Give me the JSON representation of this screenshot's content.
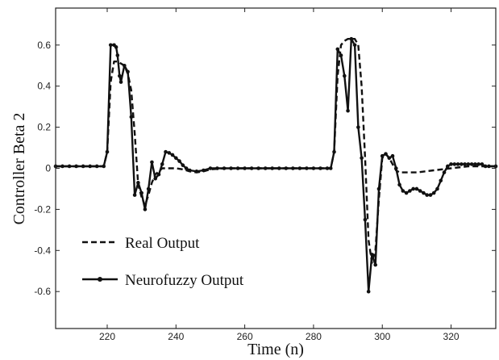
{
  "chart_data": {
    "type": "line",
    "title": "",
    "xlabel": "Time (n)",
    "ylabel": "Controller Beta 2",
    "xlim": [
      205,
      333
    ],
    "ylim": [
      -0.78,
      0.78
    ],
    "x_ticks": [
      220,
      240,
      260,
      280,
      300,
      320
    ],
    "y_ticks": [
      0.6,
      0.4,
      0.2,
      0,
      -0.2,
      -0.4,
      -0.6
    ],
    "y_tick_labels": [
      "0.6",
      "0.4",
      "0.2",
      "0",
      "-0.2",
      "-0.4",
      "-0.6"
    ],
    "grid": false,
    "legend_position": "bottom-left",
    "series": [
      {
        "name": "Real Output",
        "style": "dashed",
        "color": "#111111",
        "x": [
          205,
          219,
          220,
          221,
          222,
          223,
          224,
          225,
          226,
          227,
          228,
          229,
          230,
          231,
          232,
          233,
          234,
          236,
          238,
          240,
          242,
          244,
          246,
          248,
          250,
          254,
          260,
          270,
          280,
          285,
          286,
          287,
          288,
          289,
          290,
          291,
          292,
          293,
          294,
          295,
          296,
          297,
          298,
          299,
          300,
          301,
          302,
          303,
          304,
          305,
          307,
          310,
          315,
          320,
          325,
          333
        ],
        "y": [
          0.01,
          0.01,
          0.08,
          0.42,
          0.52,
          0.52,
          0.51,
          0.5,
          0.46,
          0.38,
          0.17,
          -0.08,
          -0.14,
          -0.18,
          -0.13,
          -0.07,
          -0.03,
          0.0,
          0.0,
          0.0,
          -0.005,
          -0.015,
          -0.02,
          -0.015,
          -0.005,
          0.0,
          0.0,
          0.0,
          0.0,
          0.0,
          0.08,
          0.45,
          0.6,
          0.62,
          0.63,
          0.63,
          0.63,
          0.6,
          0.4,
          0.05,
          -0.35,
          -0.46,
          -0.4,
          -0.15,
          0.05,
          0.07,
          0.05,
          0.02,
          -0.01,
          -0.02,
          -0.02,
          -0.02,
          -0.01,
          0.0,
          0.01,
          0.01
        ]
      },
      {
        "name": "Neurofuzzy Output",
        "style": "solid-markers",
        "color": "#111111",
        "x": [
          205,
          207,
          209,
          211,
          213,
          215,
          217,
          219,
          220,
          221,
          222,
          222.6,
          223,
          223.6,
          224,
          225,
          226,
          227,
          228,
          229,
          230,
          231,
          232,
          233,
          234,
          235,
          236,
          237,
          238,
          239,
          240,
          241,
          242,
          243,
          244,
          246,
          248,
          250,
          252,
          254,
          256,
          258,
          260,
          262,
          264,
          266,
          268,
          270,
          272,
          274,
          276,
          278,
          280,
          282,
          284,
          285,
          286,
          287,
          288,
          289,
          290,
          291,
          292,
          293,
          294,
          295,
          296,
          297,
          298,
          299,
          300,
          301,
          302,
          303,
          304,
          305,
          306,
          307,
          308,
          309,
          310,
          311,
          312,
          313,
          314,
          315,
          316,
          317,
          318,
          319,
          320,
          321,
          322,
          323,
          324,
          325,
          326,
          327,
          328,
          329,
          330,
          331,
          333
        ],
        "y": [
          0.01,
          0.01,
          0.01,
          0.01,
          0.01,
          0.01,
          0.01,
          0.01,
          0.08,
          0.6,
          0.6,
          0.59,
          0.55,
          0.45,
          0.42,
          0.5,
          0.47,
          0.25,
          -0.13,
          -0.07,
          -0.12,
          -0.2,
          -0.1,
          0.03,
          -0.05,
          -0.03,
          0.02,
          0.08,
          0.075,
          0.065,
          0.05,
          0.035,
          0.015,
          0.0,
          -0.01,
          -0.015,
          -0.01,
          0.0,
          0.0,
          0.0,
          0.0,
          0.0,
          0.0,
          0.0,
          0.0,
          0.0,
          0.0,
          0.0,
          0.0,
          0.0,
          0.0,
          0.0,
          0.0,
          0.0,
          0.0,
          0.0,
          0.08,
          0.58,
          0.55,
          0.45,
          0.28,
          0.63,
          0.6,
          0.2,
          0.05,
          -0.25,
          -0.6,
          -0.42,
          -0.47,
          -0.1,
          0.06,
          0.07,
          0.05,
          0.06,
          0.0,
          -0.08,
          -0.11,
          -0.12,
          -0.11,
          -0.1,
          -0.1,
          -0.11,
          -0.12,
          -0.13,
          -0.13,
          -0.12,
          -0.1,
          -0.06,
          -0.02,
          0.01,
          0.02,
          0.02,
          0.02,
          0.02,
          0.02,
          0.02,
          0.02,
          0.02,
          0.02,
          0.02,
          0.01,
          0.01,
          0.01
        ]
      }
    ]
  }
}
